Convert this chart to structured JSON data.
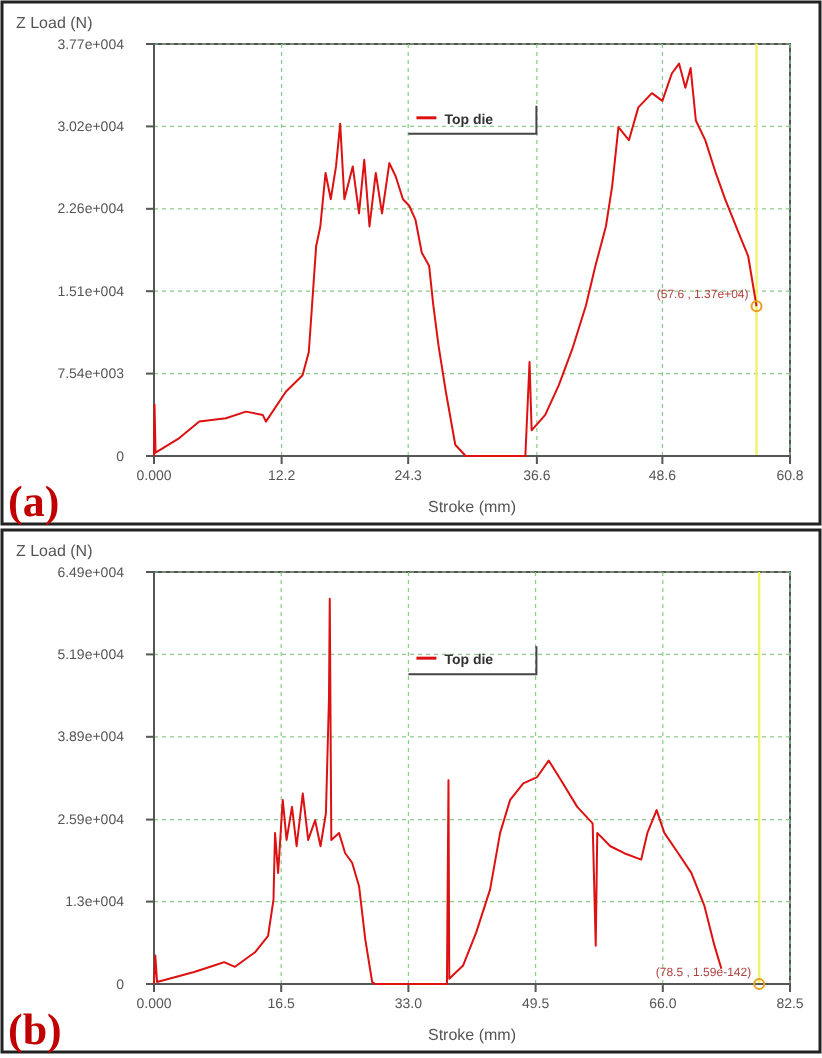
{
  "chart_data": [
    {
      "type": "line",
      "ylabel": "Z Load (N)",
      "xlabel": "Stroke (mm)",
      "annotations": [
        "(a)",
        {
          "text": "(57.6 , 1.37e+04)",
          "x": 57.6,
          "y": 13700
        }
      ],
      "xlim": [
        0,
        60.8
      ],
      "xticks": [
        {
          "value": 0,
          "label": "0.000"
        },
        12.2,
        24.3,
        36.6,
        48.6,
        60.8
      ],
      "ylim": [
        0,
        37700
      ],
      "yticks": [
        0,
        {
          "value": 7540,
          "label": "7.54e+003"
        },
        {
          "value": 15080,
          "label": "1.51e+004"
        },
        {
          "value": 22620,
          "label": "2.26e+004"
        },
        {
          "value": 30160,
          "label": "3.02e+004"
        },
        {
          "value": 37700,
          "label": "3.77e+004"
        }
      ],
      "grid": true,
      "legend": "top",
      "ref_lines": [
        {
          "axis": "x",
          "value": 57.6,
          "color": "#f2f266"
        }
      ],
      "series": [
        {
          "name": "Top die",
          "color": "#dd1111",
          "x": [
            0,
            0.05,
            0.15,
            2.42,
            4.33,
            6.88,
            8.79,
            10.4,
            10.7,
            12.6,
            14.2,
            14.8,
            15.5,
            15.9,
            16.4,
            16.9,
            17.4,
            17.8,
            18.2,
            19.0,
            19.6,
            20.1,
            20.6,
            21.2,
            21.8,
            22.5,
            23.1,
            23.8,
            24.4,
            25.0,
            25.6,
            26.3,
            26.7,
            27.2,
            27.9,
            28.8,
            29.8,
            35.5,
            35.9,
            36.1,
            37.4,
            38.7,
            40.0,
            41.3,
            42.2,
            43.2,
            43.8,
            44.4,
            45.4,
            46.3,
            47.6,
            48.6,
            49.5,
            50.2,
            50.8,
            51.3,
            51.8,
            52.7,
            53.7,
            54.6,
            55.9,
            56.8,
            57.6
          ],
          "values": [
            0,
            4700,
            300,
            1640,
            3150,
            3450,
            4060,
            3760,
            3150,
            5880,
            7390,
            9520,
            19200,
            21000,
            25900,
            23500,
            26500,
            30400,
            23500,
            26500,
            22200,
            27100,
            21000,
            25900,
            22200,
            26800,
            25600,
            23500,
            22900,
            21600,
            18600,
            17400,
            13800,
            10100,
            5880,
            1030,
            0,
            0,
            8600,
            2350,
            3760,
            6480,
            9820,
            13800,
            17400,
            21000,
            24700,
            30100,
            28900,
            31900,
            33200,
            32500,
            35000,
            35900,
            33700,
            35500,
            30700,
            28900,
            25900,
            23500,
            20400,
            18300,
            13700
          ]
        }
      ]
    },
    {
      "type": "line",
      "ylabel": "Z Load (N)",
      "xlabel": "Stroke (mm)",
      "annotations": [
        "(b)",
        {
          "text": "(78.5 , 1.59e-142)",
          "x": 78.5,
          "y": 0
        }
      ],
      "xlim": [
        0,
        82.5
      ],
      "xticks": [
        {
          "value": 0,
          "label": "0.000"
        },
        16.5,
        {
          "value": 33,
          "label": "33.0"
        },
        49.5,
        {
          "value": 66,
          "label": "66.0"
        },
        82.5
      ],
      "ylim": [
        0,
        64900
      ],
      "yticks": [
        0,
        {
          "value": 12980,
          "label": "1.3e+004"
        },
        {
          "value": 25900,
          "label": "2.59e+004"
        },
        {
          "value": 38940,
          "label": "3.89e+004"
        },
        {
          "value": 51920,
          "label": "5.19e+004"
        },
        {
          "value": 64900,
          "label": "6.49e+004"
        }
      ],
      "grid": true,
      "legend": "top",
      "ref_lines": [
        {
          "axis": "x",
          "value": 78.5,
          "color": "#f2f266"
        }
      ],
      "series": [
        {
          "name": "Top die",
          "color": "#dd1111",
          "x": [
            0,
            0.17,
            0.4,
            5.2,
            7.8,
            9.1,
            10.5,
            13.1,
            14.8,
            15.5,
            15.7,
            16.1,
            16.7,
            17.2,
            17.9,
            18.5,
            19.3,
            20.0,
            20.9,
            21.6,
            22.3,
            22.7,
            22.8,
            23.0,
            24.0,
            24.8,
            25.7,
            26.6,
            27.4,
            28.3,
            28.7,
            38.0,
            38.2,
            38.3,
            40.1,
            41.8,
            43.6,
            44.9,
            46.2,
            47.9,
            49.7,
            51.2,
            52.8,
            54.9,
            56.9,
            57.3,
            57.5,
            59.2,
            61.0,
            63.2,
            64.0,
            65.2,
            66.2,
            68.0,
            69.7,
            71.4,
            72.7,
            73.6
          ],
          "values": [
            0,
            4480,
            310,
            1880,
            2920,
            3440,
            2710,
            5000,
            7600,
            13300,
            23800,
            17500,
            29000,
            22700,
            27900,
            21700,
            30000,
            22700,
            25800,
            21700,
            26900,
            45100,
            60700,
            22700,
            23800,
            20600,
            19100,
            15400,
            7080,
            310,
            0,
            0,
            32100,
            830,
            2920,
            8130,
            14900,
            23800,
            29000,
            31600,
            32600,
            35200,
            32100,
            27900,
            25300,
            6040,
            23800,
            21700,
            20600,
            19600,
            23800,
            27400,
            23800,
            20600,
            17500,
            12300,
            6040,
            2400
          ]
        }
      ]
    }
  ]
}
